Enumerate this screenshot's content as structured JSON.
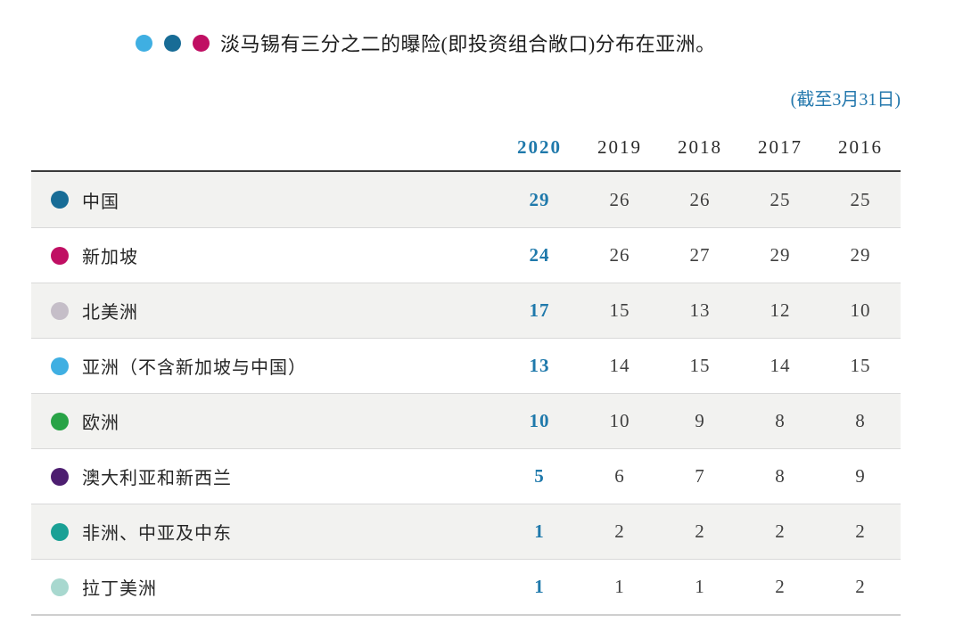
{
  "header": {
    "title": "淡马锡有三分之二的曝险(即投资组合敞口)分布在亚洲。",
    "dots": [
      {
        "name": "asia-legend-dot",
        "color": "#3fafe2"
      },
      {
        "name": "china-legend-dot",
        "color": "#186c96"
      },
      {
        "name": "singapore-legend-dot",
        "color": "#c00f63"
      }
    ],
    "as_of": "(截至3月31日)"
  },
  "colors": {
    "accent_blue": "#1f79ab",
    "as_of_blue": "#2478ad",
    "stripe": "#f2f2f0",
    "header_rule": "#3a3a3a",
    "row_divider": "#d9d9d9"
  },
  "chart_data": {
    "type": "table",
    "title": "淡马锡有三分之二的曝险(即投资组合敞口)分布在亚洲。",
    "subtitle": "(截至3月31日)",
    "categories": [
      "2020",
      "2019",
      "2018",
      "2017",
      "2016"
    ],
    "highlight_category": "2020",
    "series": [
      {
        "name": "中国",
        "dot": "china-dot",
        "color": "#186c96",
        "values": [
          29,
          26,
          26,
          25,
          25
        ]
      },
      {
        "name": "新加坡",
        "dot": "singapore-dot",
        "color": "#c00f63",
        "values": [
          24,
          26,
          27,
          29,
          29
        ]
      },
      {
        "name": "北美洲",
        "dot": "north-america-dot",
        "color": "#c5bec8",
        "values": [
          17,
          15,
          13,
          12,
          10
        ]
      },
      {
        "name": "亚洲（不含新加坡与中国）",
        "dot": "asia-ex-singapore-china-dot",
        "color": "#3fafe2",
        "values": [
          13,
          14,
          15,
          14,
          15
        ]
      },
      {
        "name": "欧洲",
        "dot": "europe-dot",
        "color": "#28a346",
        "values": [
          10,
          10,
          9,
          8,
          8
        ]
      },
      {
        "name": "澳大利亚和新西兰",
        "dot": "australia-new-zealand-dot",
        "color": "#4d1e70",
        "values": [
          5,
          6,
          7,
          8,
          9
        ]
      },
      {
        "name": "非洲、中亚及中东",
        "dot": "africa-central-asia-middle-east-dot",
        "color": "#1aa095",
        "values": [
          1,
          2,
          2,
          2,
          2
        ]
      },
      {
        "name": "拉丁美洲",
        "dot": "latin-america-dot",
        "color": "#a8d8cf",
        "values": [
          1,
          1,
          1,
          2,
          2
        ]
      }
    ]
  }
}
